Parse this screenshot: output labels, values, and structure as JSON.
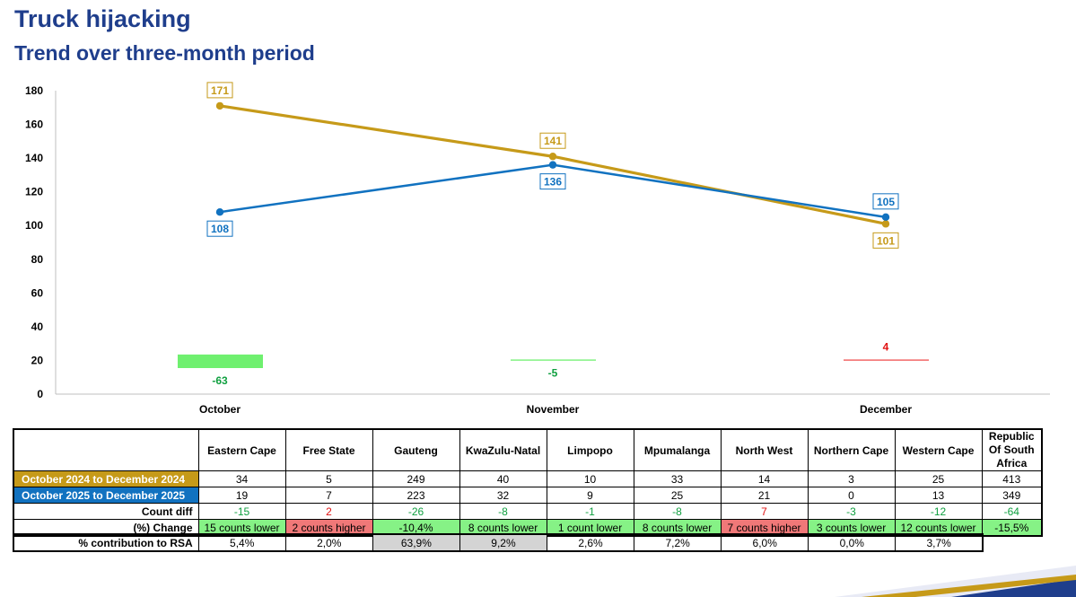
{
  "title": "Truck hijacking",
  "subtitle": "Trend over three-month period",
  "colors": {
    "gold": "#c69a19",
    "blue": "#1172c0",
    "green": "#10a040",
    "red": "#e01010",
    "title": "#1f3e8c"
  },
  "chart_data": {
    "type": "line",
    "categories": [
      "October",
      "November",
      "December"
    ],
    "series": [
      {
        "name": "October 2024 to December 2024",
        "values": [
          171,
          141,
          101
        ],
        "color": "#c69a19"
      },
      {
        "name": "October 2025 to December 2025",
        "values": [
          108,
          136,
          105
        ],
        "color": "#1172c0"
      }
    ],
    "diff_bars": {
      "values": [
        -63,
        -5,
        4
      ],
      "labels": [
        "-63",
        "-5",
        "4"
      ]
    },
    "ylim": [
      0,
      180
    ],
    "yticks": [
      0,
      20,
      40,
      60,
      80,
      100,
      120,
      140,
      160,
      180
    ],
    "ytick_labels": [
      "0",
      "20",
      "40",
      "60",
      "80",
      "100",
      "120",
      "140",
      "160",
      "180"
    ]
  },
  "table": {
    "columns": [
      "Eastern Cape",
      "Free State",
      "Gauteng",
      "KwaZulu-Natal",
      "Limpopo",
      "Mpumalanga",
      "North West",
      "Northern Cape",
      "Western Cape",
      "Republic Of South Africa"
    ],
    "rows": [
      {
        "label": "October 2024 to December 2024",
        "values": [
          "34",
          "5",
          "249",
          "40",
          "10",
          "33",
          "14",
          "3",
          "25",
          "413"
        ]
      },
      {
        "label": "October 2025 to December 2025",
        "values": [
          "19",
          "7",
          "223",
          "32",
          "9",
          "25",
          "21",
          "0",
          "13",
          "349"
        ]
      },
      {
        "label": "Count diff",
        "values": [
          "-15",
          "2",
          "-26",
          "-8",
          "-1",
          "-8",
          "7",
          "-3",
          "-12",
          "-64"
        ]
      },
      {
        "label": "(%) Change",
        "values": [
          "15 counts lower",
          "2 counts higher",
          "-10,4%",
          "8 counts lower",
          "1 count lower",
          "8 counts lower",
          "7 counts higher",
          "3 counts lower",
          "12 counts lower",
          "-15,5%"
        ]
      }
    ],
    "contribution": {
      "label": "% contribution to RSA",
      "values": [
        "5,4%",
        "2,0%",
        "63,9%",
        "9,2%",
        "2,6%",
        "7,2%",
        "6,0%",
        "0,0%",
        "3,7%"
      ]
    }
  }
}
